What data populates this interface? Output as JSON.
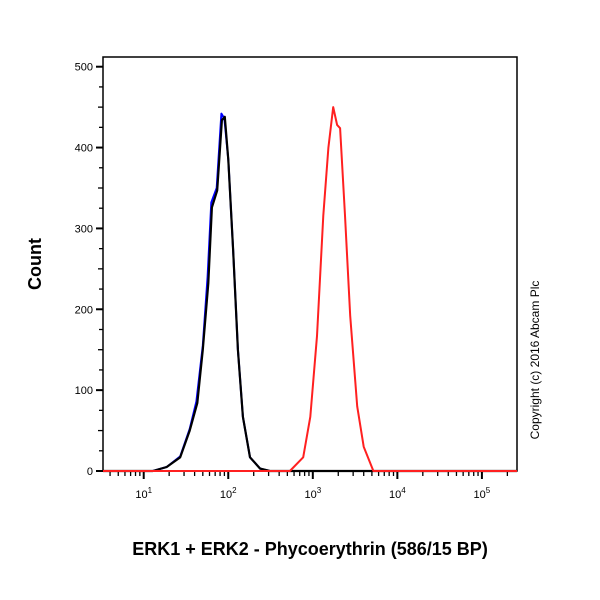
{
  "chart_data": {
    "type": "line",
    "title": "",
    "xlabel": "ERK1 + ERK2 - Phycoerythrin (586/15 BP)",
    "ylabel": "Count",
    "xscale": "log",
    "xlim": [
      3.3,
      260000
    ],
    "ylim": [
      0,
      512
    ],
    "x_ticks": [
      {
        "base": "10",
        "exp": "1",
        "value": 10
      },
      {
        "base": "10",
        "exp": "2",
        "value": 100
      },
      {
        "base": "10",
        "exp": "3",
        "value": 1000
      },
      {
        "base": "10",
        "exp": "4",
        "value": 10000
      },
      {
        "base": "10",
        "exp": "5",
        "value": 100000
      }
    ],
    "y_ticks": [
      0,
      100,
      200,
      300,
      400,
      500
    ],
    "grid": false,
    "annotation": "Copyright (c) 2016 Abcam Plc",
    "series": [
      {
        "color": "#0000ff",
        "x": [
          12.8,
          18.7,
          27,
          35,
          42,
          50,
          57,
          63,
          73,
          83,
          90,
          100,
          114,
          130,
          149,
          181,
          238,
          310
        ],
        "y": [
          0,
          5,
          18,
          52,
          86,
          155,
          240,
          332,
          350,
          442,
          436,
          385,
          274,
          150,
          67,
          17,
          3,
          0
        ]
      },
      {
        "color": "#000000",
        "x": [
          12.8,
          18.7,
          27,
          35,
          43,
          50,
          58,
          64,
          74,
          84,
          91,
          100,
          114,
          130,
          149,
          181,
          238,
          310
        ],
        "y": [
          0,
          5,
          17,
          50,
          84,
          150,
          232,
          326,
          347,
          434,
          438,
          385,
          274,
          150,
          67,
          17,
          3,
          0
        ]
      },
      {
        "color": "#ff2020",
        "x": [
          3.3,
          536,
          770,
          935,
          1120,
          1330,
          1530,
          1740,
          1940,
          2100,
          2400,
          2770,
          3350,
          4000,
          5200,
          260000
        ],
        "y": [
          0,
          0,
          17,
          67,
          167,
          316,
          400,
          450,
          428,
          424,
          316,
          192,
          80,
          30,
          0,
          0
        ]
      }
    ]
  }
}
